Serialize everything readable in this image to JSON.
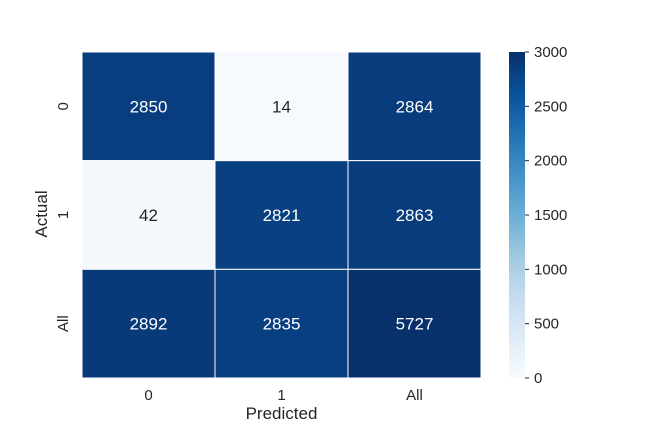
{
  "chart_data": {
    "type": "heatmap",
    "title": "",
    "xlabel": "Predicted",
    "ylabel": "Actual",
    "x_categories": [
      "0",
      "1",
      "All"
    ],
    "y_categories": [
      "0",
      "1",
      "All"
    ],
    "values": [
      [
        2850,
        14,
        2864
      ],
      [
        42,
        2821,
        2863
      ],
      [
        2892,
        2835,
        5727
      ]
    ],
    "colorscale": "Blues",
    "colorbar": {
      "range": [
        0,
        3000
      ],
      "ticks": [
        "0",
        "500",
        "1000",
        "1500",
        "2000",
        "2500",
        "3000"
      ]
    },
    "annotations": "cell values shown in each cell"
  },
  "colors": {
    "scale": [
      "#f7fbff",
      "#deebf7",
      "#c6dbef",
      "#9ecae1",
      "#6baed6",
      "#4292c6",
      "#2171b5",
      "#08519c",
      "#08306b"
    ],
    "dark_text": "#262626",
    "light_text": "#ffffff"
  }
}
